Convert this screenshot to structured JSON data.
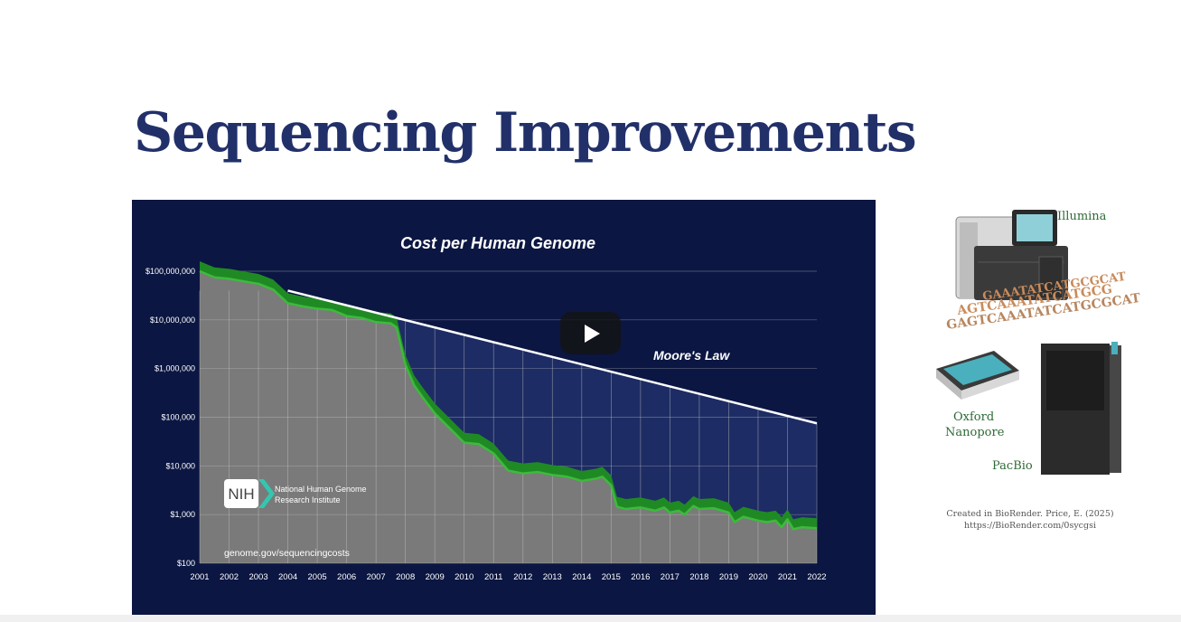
{
  "slide": {
    "title": "Sequencing Improvements"
  },
  "chart_data": {
    "type": "area",
    "title": "Cost per Human Genome",
    "x_tick_labels": [
      "2001",
      "2002",
      "2003",
      "2004",
      "2005",
      "2006",
      "2007",
      "2008",
      "2009",
      "2010",
      "2011",
      "2012",
      "2013",
      "2014",
      "2015",
      "2016",
      "2017",
      "2018",
      "2019",
      "2020",
      "2021",
      "2022"
    ],
    "y_tick_labels": [
      "$100,000,000",
      "$10,000,000",
      "$1,000,000",
      "$100,000",
      "$10,000",
      "$1,000",
      "$100"
    ],
    "y_scale": "log",
    "ylim": [
      100,
      100000000
    ],
    "xlim": [
      2001,
      2022
    ],
    "series": [
      {
        "name": "",
        "color": "#3dba3d",
        "points": [
          [
            2001.0,
            100000000
          ],
          [
            2001.5,
            75000000
          ],
          [
            2002.0,
            70000000
          ],
          [
            2002.5,
            62000000
          ],
          [
            2003.0,
            55000000
          ],
          [
            2003.5,
            42000000
          ],
          [
            2004.0,
            22000000
          ],
          [
            2004.5,
            19000000
          ],
          [
            2005.0,
            17000000
          ],
          [
            2005.5,
            16000000
          ],
          [
            2006.0,
            12000000
          ],
          [
            2006.5,
            11000000
          ],
          [
            2007.0,
            9000000
          ],
          [
            2007.5,
            8500000
          ],
          [
            2007.7,
            7000000
          ],
          [
            2008.0,
            1200000
          ],
          [
            2008.3,
            450000
          ],
          [
            2008.6,
            250000
          ],
          [
            2009.0,
            120000
          ],
          [
            2009.5,
            60000
          ],
          [
            2010.0,
            30000
          ],
          [
            2010.5,
            28000
          ],
          [
            2011.0,
            18000
          ],
          [
            2011.5,
            8000
          ],
          [
            2012.0,
            7000
          ],
          [
            2012.5,
            7500
          ],
          [
            2013.0,
            6500
          ],
          [
            2013.5,
            6000
          ],
          [
            2014.0,
            4900
          ],
          [
            2014.5,
            5500
          ],
          [
            2014.7,
            6000
          ],
          [
            2015.0,
            4000
          ],
          [
            2015.2,
            1450
          ],
          [
            2015.5,
            1300
          ],
          [
            2016.0,
            1400
          ],
          [
            2016.5,
            1200
          ],
          [
            2016.8,
            1400
          ],
          [
            2017.0,
            1100
          ],
          [
            2017.3,
            1200
          ],
          [
            2017.5,
            1000
          ],
          [
            2017.8,
            1500
          ],
          [
            2018.0,
            1300
          ],
          [
            2018.5,
            1350
          ],
          [
            2019.0,
            1100
          ],
          [
            2019.2,
            700
          ],
          [
            2019.5,
            900
          ],
          [
            2020.0,
            750
          ],
          [
            2020.3,
            700
          ],
          [
            2020.6,
            750
          ],
          [
            2020.8,
            550
          ],
          [
            2021.0,
            800
          ],
          [
            2021.2,
            500
          ],
          [
            2021.5,
            550
          ],
          [
            2022.0,
            525
          ]
        ]
      },
      {
        "name": "Moore's Law",
        "color": "#ffffff",
        "points": [
          [
            2004.0,
            40000000
          ],
          [
            2022.0,
            75000
          ]
        ]
      }
    ],
    "annotations": [
      {
        "text": "Moore's Law"
      }
    ],
    "source": "genome.gov/sequencingcosts",
    "logo_acronym": "NIH",
    "logo_org_line1": "National Human Genome",
    "logo_org_line2": "Research Institute",
    "colors": {
      "background": "#0b1642",
      "gap_fill": "#1d2c64",
      "area_fill": "#7a7a7a",
      "band": "#1f8a24",
      "line": "#3dba3d",
      "grid": "#c9c9c9",
      "text": "#ffffff"
    }
  },
  "illustration": {
    "illumina_label": "Illumina",
    "oxford_label_line1": "Oxford",
    "oxford_label_line2": "Nanopore",
    "pacbio_label": "PacBio",
    "dna_line1": "GAAATATCATGCGCAT",
    "dna_line2": "AGTCAAATATCATGCG",
    "dna_line3": "GAGTCAAATATCATGCGCAT"
  },
  "credit": {
    "line1": "Created in BioRender. Price, E. (2025)",
    "line2": "https://BioRender.com/0sycgsi"
  },
  "video": {
    "play_icon": "play-icon"
  }
}
